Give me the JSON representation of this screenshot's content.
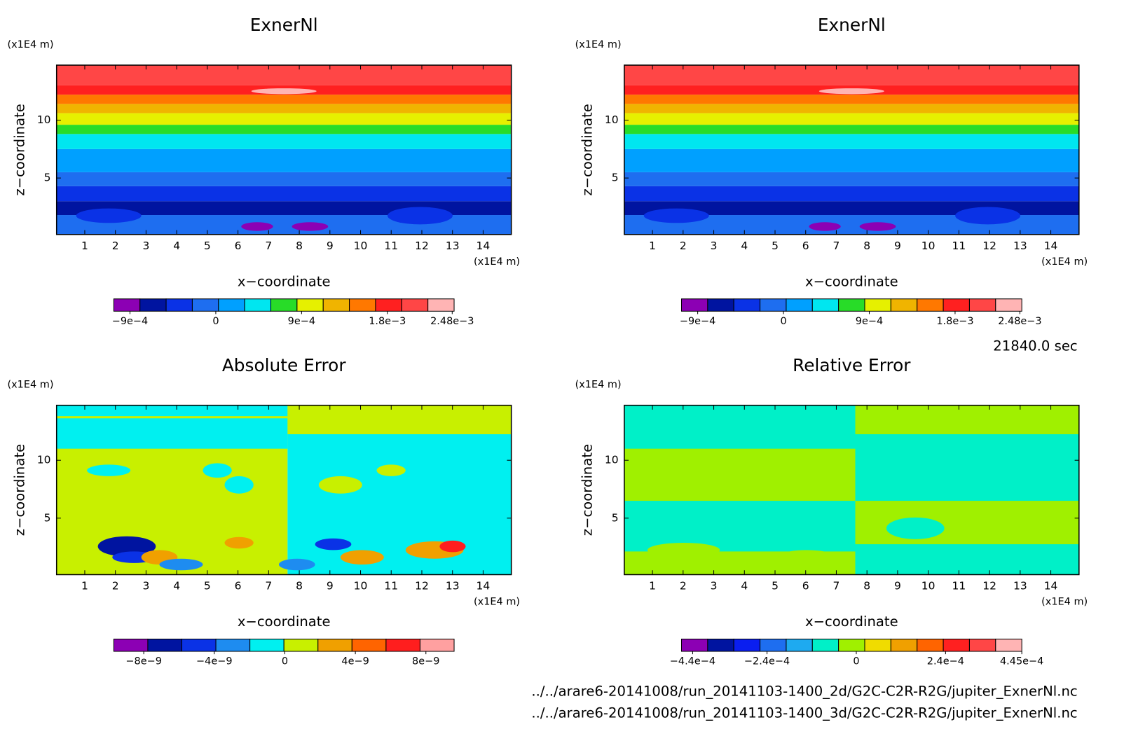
{
  "chart_data": [
    {
      "type": "contour",
      "title": "ExnerNl",
      "x_label": "x−coordinate",
      "y_label": "z−coordinate",
      "x_unit": "(x1E4 m)",
      "y_unit": "(x1E4 m)",
      "xlim": [
        0.08,
        14.92
      ],
      "ylim": [
        0.12,
        14.75
      ],
      "xticks": [
        1,
        2,
        3,
        4,
        5,
        6,
        7,
        8,
        9,
        10,
        11,
        12,
        13,
        14
      ],
      "yticks": [
        5,
        10
      ],
      "colorbar": {
        "colors": [
          "#8c00b4",
          "#0014a0",
          "#0a32e6",
          "#1e6ef0",
          "#00a0ff",
          "#00e6f0",
          "#28dc28",
          "#e6f000",
          "#f0b400",
          "#ff7800",
          "#ff2020",
          "#ff4646",
          "#ffb4b4"
        ],
        "clim": [
          -0.00107,
          0.0025
        ],
        "ticks": [
          {
            "value": -0.0009,
            "label": "−9e−4"
          },
          0,
          {
            "value": 0.0009,
            "label": "9e−4"
          },
          {
            "value": 0.0018,
            "label": "1.8e−3"
          },
          {
            "value": 0.00248,
            "label": "2.48e−3"
          }
        ]
      }
    },
    {
      "type": "contour",
      "title": "ExnerNl",
      "x_label": "x−coordinate",
      "y_label": "z−coordinate",
      "x_unit": "(x1E4 m)",
      "y_unit": "(x1E4 m)",
      "xlim": [
        0.08,
        14.92
      ],
      "ylim": [
        0.12,
        14.75
      ],
      "xticks": [
        1,
        2,
        3,
        4,
        5,
        6,
        7,
        8,
        9,
        10,
        11,
        12,
        13,
        14
      ],
      "yticks": [
        5,
        10
      ],
      "colorbar": {
        "colors": [
          "#8c00b4",
          "#0014a0",
          "#0a32e6",
          "#1e6ef0",
          "#00a0ff",
          "#00e6f0",
          "#28dc28",
          "#e6f000",
          "#f0b400",
          "#ff7800",
          "#ff2020",
          "#ff4646",
          "#ffb4b4"
        ],
        "clim": [
          -0.00107,
          0.0025
        ],
        "ticks": [
          {
            "value": -0.0009,
            "label": "−9e−4"
          },
          0,
          {
            "value": 0.0009,
            "label": "9e−4"
          },
          {
            "value": 0.0018,
            "label": "1.8e−3"
          },
          {
            "value": 0.00248,
            "label": "2.48e−3"
          }
        ]
      }
    },
    {
      "type": "contour",
      "title": "Absolute Error",
      "x_label": "x−coordinate",
      "y_label": "z−coordinate",
      "x_unit": "(x1E4 m)",
      "y_unit": "(x1E4 m)",
      "xlim": [
        0.08,
        14.92
      ],
      "ylim": [
        0.12,
        14.75
      ],
      "xticks": [
        1,
        2,
        3,
        4,
        5,
        6,
        7,
        8,
        9,
        10,
        11,
        12,
        13,
        14
      ],
      "yticks": [
        5,
        10
      ],
      "colorbar": {
        "colors": [
          "#8c00b4",
          "#0014a0",
          "#0a32e6",
          "#1e8cf0",
          "#00f0f0",
          "#c8f000",
          "#f0a000",
          "#ff6400",
          "#ff1e1e",
          "#ffa0a0"
        ],
        "clim": [
          -9.7e-09,
          9.6e-09
        ],
        "ticks": [
          {
            "value": -8e-09,
            "label": "−8e−9"
          },
          {
            "value": -4e-09,
            "label": "−4e−9"
          },
          0,
          {
            "value": 4e-09,
            "label": "4e−9"
          },
          {
            "value": 8e-09,
            "label": "8e−9"
          }
        ]
      }
    },
    {
      "type": "contour",
      "title": "Relative Error",
      "x_label": "x−coordinate",
      "y_label": "z−coordinate",
      "x_unit": "(x1E4 m)",
      "y_unit": "(x1E4 m)",
      "xlim": [
        0.08,
        14.92
      ],
      "ylim": [
        0.12,
        14.75
      ],
      "xticks": [
        1,
        2,
        3,
        4,
        5,
        6,
        7,
        8,
        9,
        10,
        11,
        12,
        13,
        14
      ],
      "yticks": [
        5,
        10
      ],
      "colorbar": {
        "colors": [
          "#8c00b4",
          "#0014a0",
          "#0a1ef0",
          "#1e6ef0",
          "#1eaaf0",
          "#00f0c8",
          "#a0f000",
          "#f0dc00",
          "#f0a000",
          "#ff6400",
          "#ff2020",
          "#ff4646",
          "#ffb4b4"
        ],
        "clim": [
          -0.00047,
          0.000445
        ],
        "ticks": [
          {
            "value": -0.00044,
            "label": "−4.4e−4"
          },
          {
            "value": -0.00024,
            "label": "−2.4e−4"
          },
          0,
          {
            "value": 0.00024,
            "label": "2.4e−4"
          },
          {
            "value": 0.000445,
            "label": "4.45e−4"
          }
        ]
      }
    }
  ],
  "time_label": "21840.0 sec",
  "files": [
    "../../arare6-20141008/run_20141103-1400_2d/G2C-C2R-R2G/jupiter_ExnerNl.nc",
    "../../arare6-20141008/run_20141103-1400_3d/G2C-C2R-R2G/jupiter_ExnerNl.nc"
  ]
}
